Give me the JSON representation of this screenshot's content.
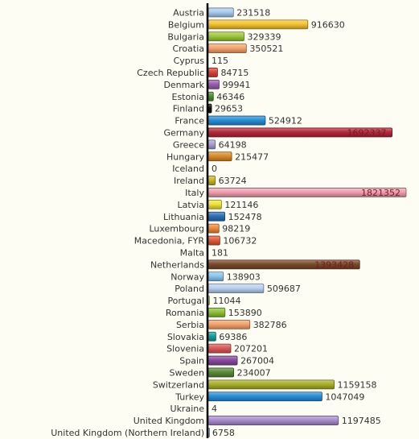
{
  "chart_data": {
    "type": "bar",
    "orientation": "horizontal",
    "categories": [
      "Austria",
      "Belgium",
      "Bulgaria",
      "Croatia",
      "Cyprus",
      "Czech Republic",
      "Denmark",
      "Estonia",
      "Finland",
      "France",
      "Germany",
      "Greece",
      "Hungary",
      "Iceland",
      "Ireland",
      "Italy",
      "Latvia",
      "Lithuania",
      "Luxembourg",
      "Macedonia, FYR",
      "Malta",
      "Netherlands",
      "Norway",
      "Poland",
      "Portugal",
      "Romania",
      "Serbia",
      "Slovakia",
      "Slovenia",
      "Spain",
      "Sweden",
      "Switzerland",
      "Turkey",
      "Ukraine",
      "United Kingdom",
      "United Kingdom (Northern Ireland)"
    ],
    "values": [
      231518,
      916630,
      329339,
      350521,
      115,
      84715,
      99941,
      46346,
      29653,
      524912,
      1692337,
      64198,
      215477,
      0,
      63724,
      1821352,
      121146,
      152478,
      98219,
      106732,
      181,
      1393428,
      138903,
      509687,
      11044,
      153890,
      382786,
      69386,
      207201,
      267004,
      234007,
      1159158,
      1047049,
      4,
      1197485,
      6758
    ],
    "value_labels": [
      "231518",
      "916630",
      "329339",
      "350521",
      "115",
      "84715",
      "99941",
      "46346",
      "29653",
      "524912",
      "1692337",
      "64198",
      "215477",
      "0",
      "63724",
      "1821352",
      "121146",
      "152478",
      "98219",
      "106732",
      "181",
      "1393428",
      "138903",
      "509687",
      "11044",
      "153890",
      "382786",
      "69386",
      "207201",
      "267004",
      "234007",
      "1159158",
      "1047049",
      "4",
      "1197485",
      "6758"
    ],
    "colors": [
      "#a9cdf0",
      "#f4c431",
      "#9fc83a",
      "#f4a46e",
      "#2db4c4",
      "#d9413e",
      "#9b5fb0",
      "#4d8f2e",
      "#111111",
      "#2a8fd6",
      "#b5283a",
      "#a9a0d6",
      "#d98b2b",
      "#555555",
      "#c9b82a",
      "#f0a0b0",
      "#f2e23a",
      "#2e6fb8",
      "#f08a3c",
      "#e05a3a",
      "#777777",
      "#7a4a2a",
      "#8cc6ee",
      "#b8d0f0",
      "#c7e070",
      "#8fc23a",
      "#f4a46e",
      "#1a9c9c",
      "#d95a5a",
      "#8a4aa0",
      "#5a8a3a",
      "#a9b02a",
      "#2a8fd6",
      "#999999",
      "#a98fcf",
      "#8cc6ee"
    ],
    "xlim": [
      0,
      1821352
    ],
    "ylim": null,
    "title": "",
    "xlabel": "",
    "ylabel": "",
    "grid": false,
    "legend": "none"
  }
}
